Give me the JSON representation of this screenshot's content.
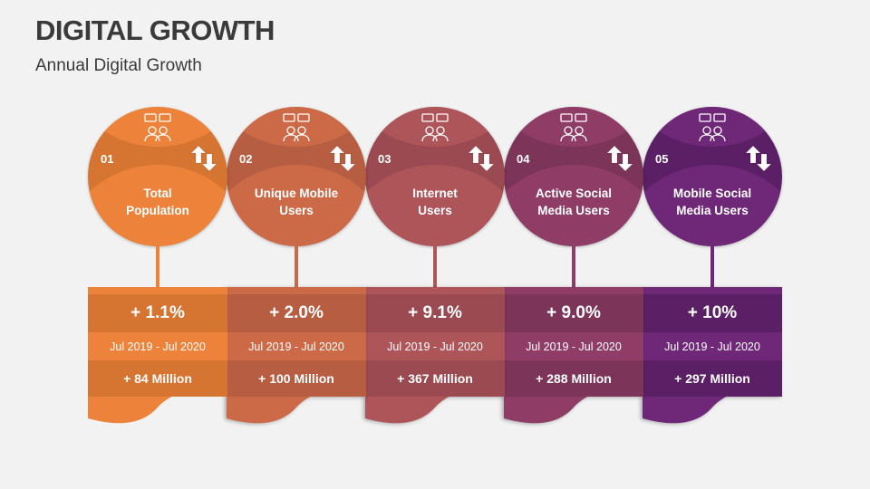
{
  "header": {
    "title": "DIGITAL GROWTH",
    "subtitle": "Annual Digital Growth"
  },
  "items": [
    {
      "number": "01",
      "label_line1": "Total",
      "label_line2": "Population",
      "percent": "+ 1.1%",
      "period": "Jul 2019 - Jul 2020",
      "amount": "+ 84 Million",
      "icon": "population-icon",
      "light": "#ED833A",
      "dark": "#D57531"
    },
    {
      "number": "02",
      "label_line1": "Unique Mobile",
      "label_line2": "Users",
      "percent": "+ 2.0%",
      "period": "Jul 2019 - Jul 2020",
      "amount": "+ 100 Million",
      "icon": "mobile-user-icon",
      "light": "#CC6A48",
      "dark": "#B75E42"
    },
    {
      "number": "03",
      "label_line1": "Internet",
      "label_line2": "Users",
      "percent": "+ 9.1%",
      "period": "Jul 2019 - Jul 2020",
      "amount": "+ 367 Million",
      "icon": "internet-icon",
      "light": "#AE5559",
      "dark": "#9A4A50"
    },
    {
      "number": "04",
      "label_line1": "Active Social",
      "label_line2": "Media Users",
      "percent": "+ 9.0%",
      "period": "Jul 2019 - Jul 2020",
      "amount": "+ 288 Million",
      "icon": "social-media-icon",
      "light": "#8F3C66",
      "dark": "#7D3459"
    },
    {
      "number": "05",
      "label_line1": "Mobile Social",
      "label_line2": "Media Users",
      "percent": "+ 10%",
      "period": "Jul 2019 - Jul 2020",
      "amount": "+ 297 Million",
      "icon": "mobile-social-icon",
      "light": "#6F2778",
      "dark": "#5A1F64"
    }
  ]
}
